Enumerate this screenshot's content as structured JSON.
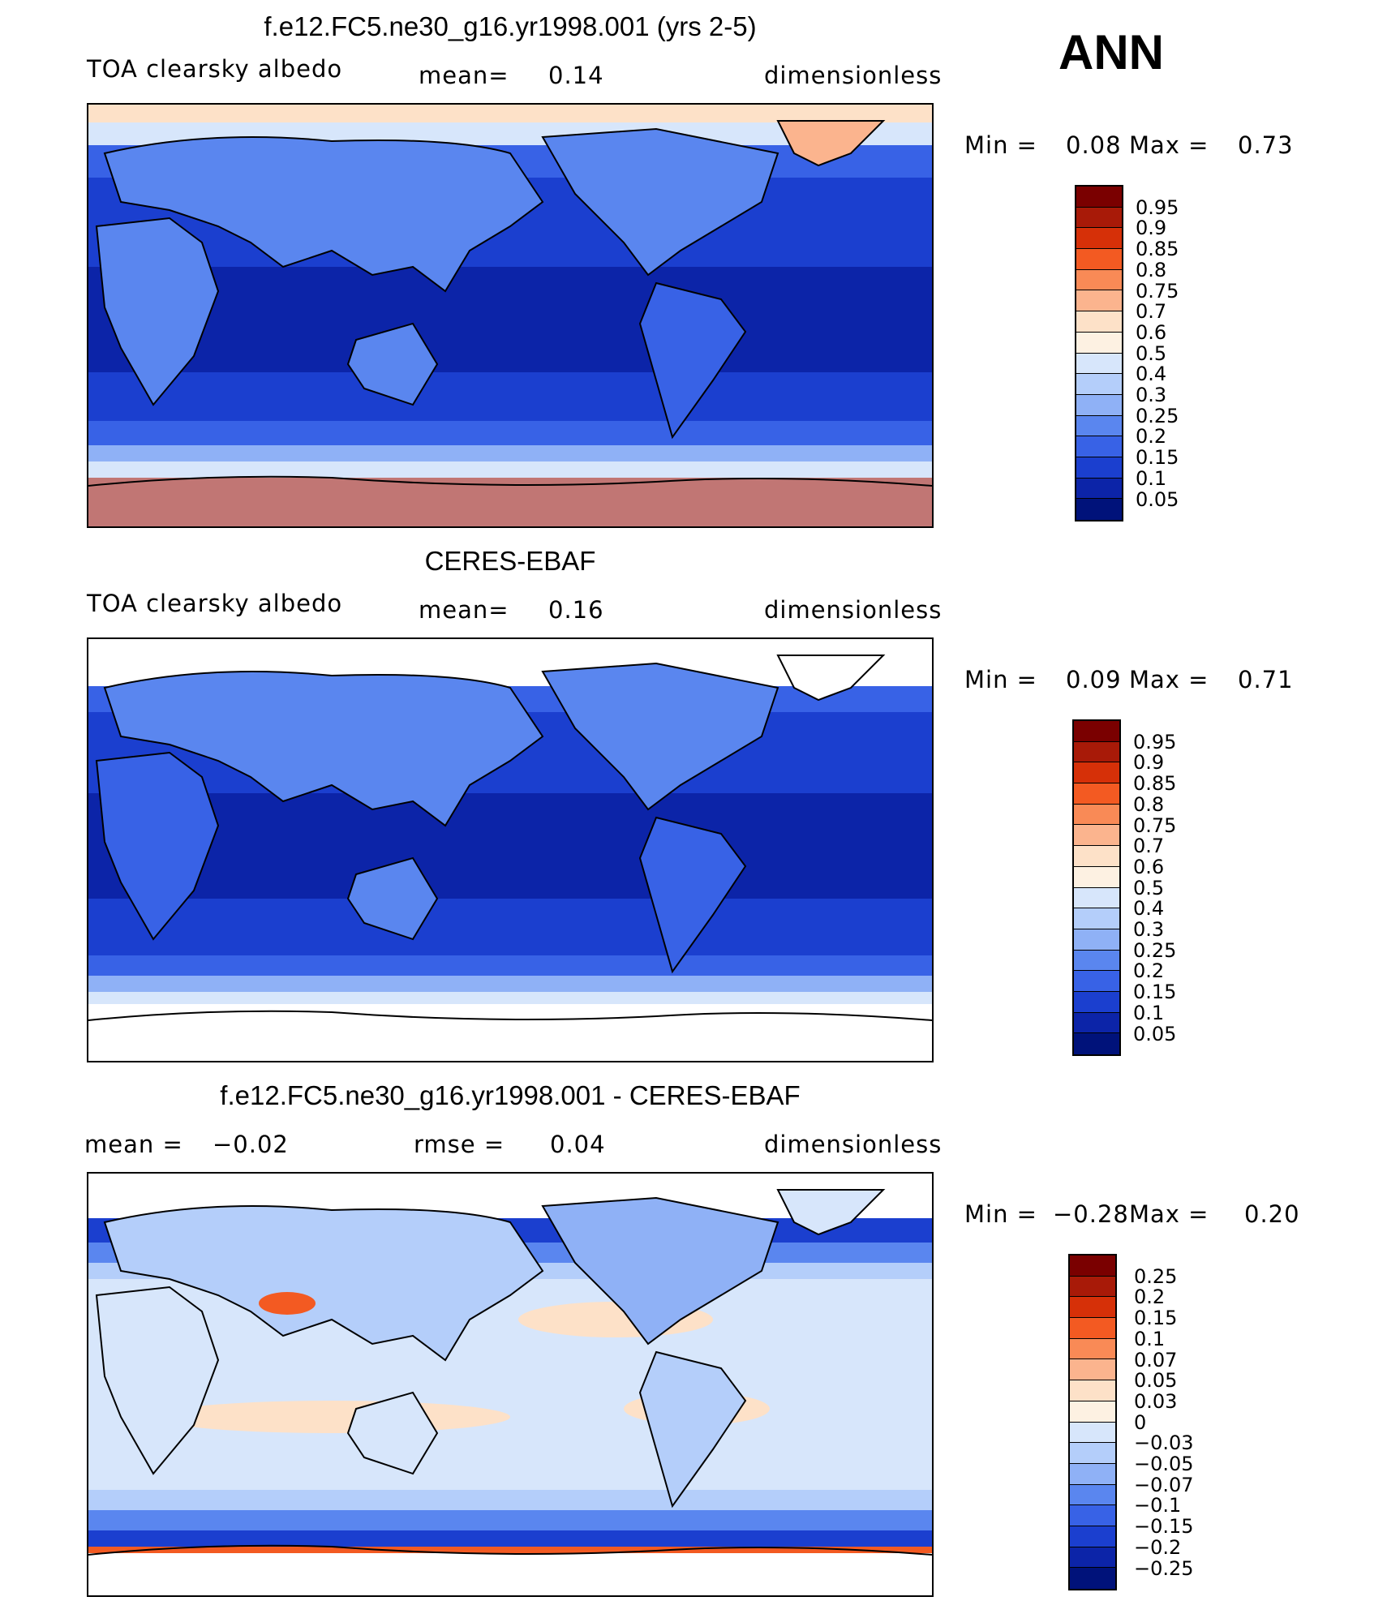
{
  "season": "ANN",
  "panels": [
    {
      "title": "f.e12.FC5.ne30_g16.yr1998.001 (yrs 2-5)",
      "left_label": "TOA clearsky albedo",
      "mid_label": "mean=",
      "mid_value": "0.14",
      "right_label": "dimensionless",
      "min_label": "Min =",
      "min_value": "0.08",
      "max_label": "Max =",
      "max_value": "0.73",
      "colorbar_labels": [
        "0.95",
        "0.9",
        "0.85",
        "0.8",
        "0.75",
        "0.7",
        "0.6",
        "0.5",
        "0.4",
        "0.3",
        "0.25",
        "0.2",
        "0.15",
        "0.1",
        "0.05"
      ],
      "colors": [
        "#7a0000",
        "#a81a08",
        "#d63008",
        "#f35a22",
        "#f98a56",
        "#fbb48e",
        "#fde1c8",
        "#fdf1e2",
        "#d7e6fb",
        "#b4cefa",
        "#8fb1f6",
        "#5a86ef",
        "#3862e6",
        "#1b3fcf",
        "#0c24a8",
        "#00127a"
      ]
    },
    {
      "title": "CERES-EBAF",
      "left_label": "TOA clearsky albedo",
      "mid_label": "mean=",
      "mid_value": "0.16",
      "right_label": "dimensionless",
      "min_label": "Min =",
      "min_value": "0.09",
      "max_label": "Max =",
      "max_value": "0.71",
      "colorbar_labels": [
        "0.95",
        "0.9",
        "0.85",
        "0.8",
        "0.75",
        "0.7",
        "0.6",
        "0.5",
        "0.4",
        "0.3",
        "0.25",
        "0.2",
        "0.15",
        "0.1",
        "0.05"
      ],
      "colors": [
        "#7a0000",
        "#a81a08",
        "#d63008",
        "#f35a22",
        "#f98a56",
        "#fbb48e",
        "#fde1c8",
        "#fdf1e2",
        "#d7e6fb",
        "#b4cefa",
        "#8fb1f6",
        "#5a86ef",
        "#3862e6",
        "#1b3fcf",
        "#0c24a8",
        "#00127a"
      ]
    },
    {
      "title": "f.e12.FC5.ne30_g16.yr1998.001 - CERES-EBAF",
      "left_label": "mean =",
      "left_value": "−0.02",
      "mid_label": "rmse =",
      "mid_value": "0.04",
      "right_label": "dimensionless",
      "min_label": "Min =",
      "min_value": "−0.28",
      "max_label": "Max =",
      "max_value": "0.20",
      "colorbar_labels": [
        "0.25",
        "0.2",
        "0.15",
        "0.1",
        "0.07",
        "0.05",
        "0.03",
        "0",
        "−0.03",
        "−0.05",
        "−0.07",
        "−0.1",
        "−0.15",
        "−0.2",
        "−0.25"
      ],
      "colors": [
        "#7a0000",
        "#a81a08",
        "#d63008",
        "#f35a22",
        "#f98a56",
        "#fbb48e",
        "#fde1c8",
        "#fdf1e2",
        "#d7e6fb",
        "#b4cefa",
        "#8fb1f6",
        "#5a86ef",
        "#3862e6",
        "#1b3fcf",
        "#0c24a8",
        "#00127a"
      ]
    }
  ]
}
